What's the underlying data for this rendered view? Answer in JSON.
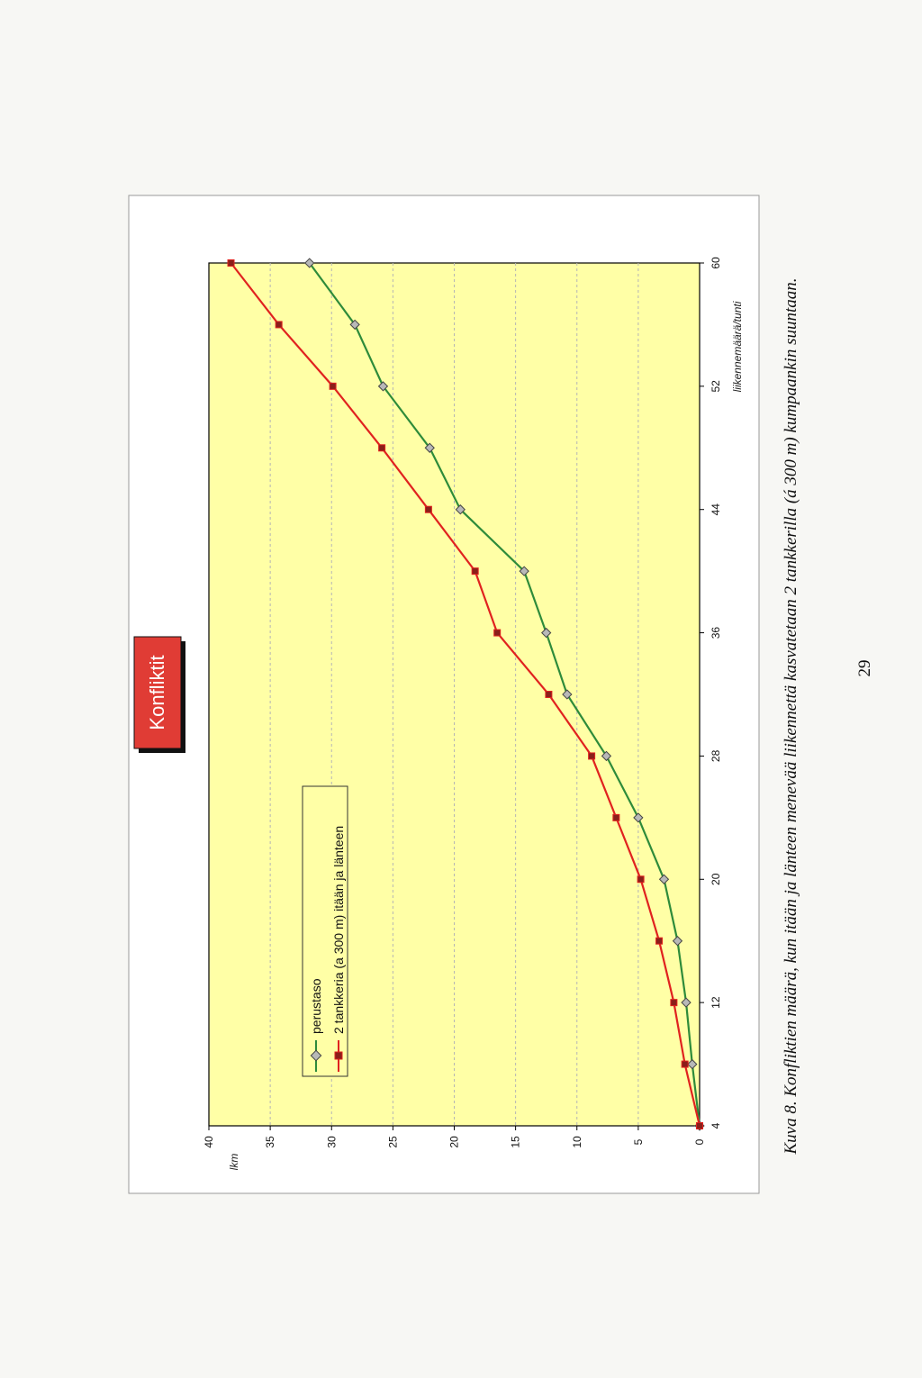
{
  "chart_data": {
    "type": "line",
    "title": "Konfliktit",
    "xlabel": "liikennemäärä/tunti",
    "ylabel": "lkm",
    "xlim": [
      4,
      60
    ],
    "ylim": [
      0,
      40
    ],
    "x_ticks": [
      4,
      12,
      20,
      28,
      36,
      44,
      52,
      60
    ],
    "y_ticks": [
      0,
      5,
      10,
      15,
      20,
      25,
      30,
      35,
      40
    ],
    "grid": true,
    "legend_position": "top-left",
    "x": [
      4,
      8,
      12,
      16,
      20,
      24,
      28,
      32,
      36,
      40,
      44,
      48,
      52,
      56,
      60
    ],
    "series": [
      {
        "name": "perustaso",
        "color": "#2e8b3a",
        "marker": "diamond",
        "values": [
          0,
          0.6,
          1.1,
          1.8,
          2.9,
          5.0,
          7.6,
          10.8,
          12.5,
          14.3,
          19.5,
          22.0,
          25.8,
          28.1,
          31.8
        ]
      },
      {
        "name": "2 tankkeria (a 300 m)  itään ja länteen",
        "color": "#e0221f",
        "marker": "square",
        "values": [
          0,
          1.2,
          2.1,
          3.3,
          4.8,
          6.8,
          8.8,
          12.3,
          16.5,
          18.3,
          22.1,
          25.9,
          29.9,
          34.3,
          38.2
        ]
      }
    ],
    "background_color": "#ffffa6"
  },
  "caption": "Kuva 8. Konfliktien määrä, kun itään ja länteen menevää liikennettä kasvatetaan 2 tankkerilla (á 300 m) kumpaankin suuntaan.",
  "page_number": "29"
}
